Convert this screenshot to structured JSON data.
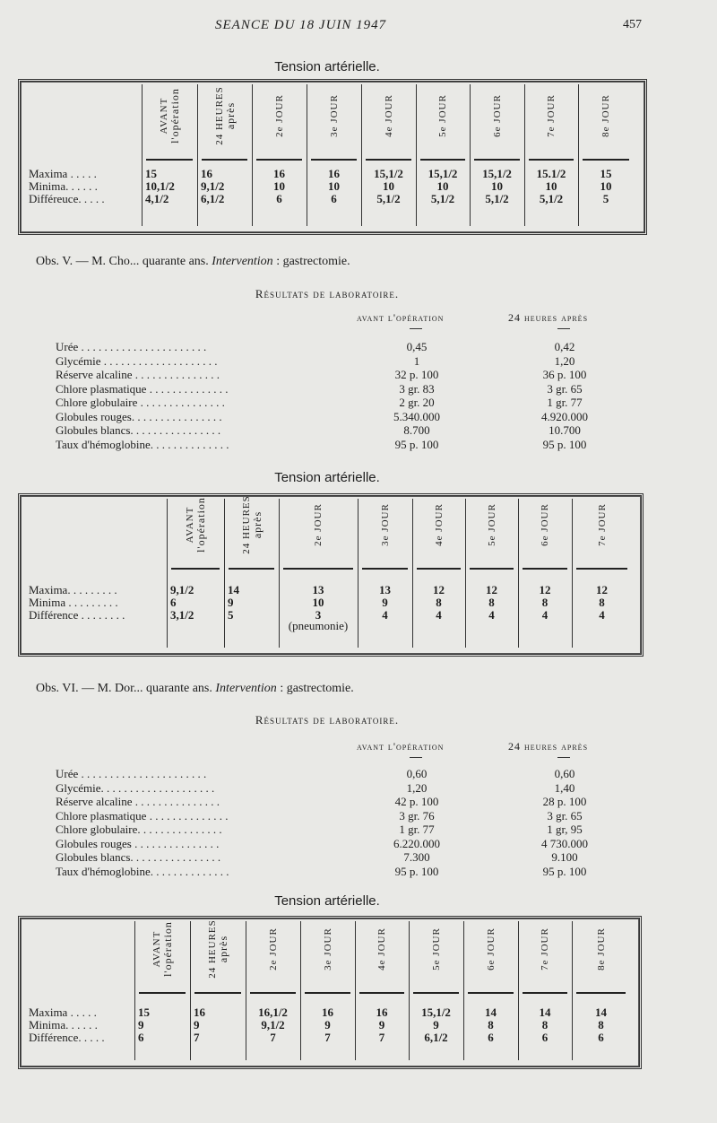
{
  "header": {
    "running_title": "SEANCE DU 18 JUIN 1947",
    "page_number": "457"
  },
  "tables": [
    {
      "title": "Tension artérielle.",
      "columns": [
        [
          "AVANT",
          "l'opération"
        ],
        [
          "24 HEURES",
          "après"
        ],
        [
          "2e JOUR"
        ],
        [
          "3e JOUR"
        ],
        [
          "4e JOUR"
        ],
        [
          "5e JOUR"
        ],
        [
          "6e JOUR"
        ],
        [
          "7e JOUR"
        ],
        [
          "8e JOUR"
        ]
      ],
      "rows": [
        {
          "label": "Maxima . . . . .",
          "values": [
            "15",
            "16",
            "16",
            "16",
            "15,1/2",
            "15,1/2",
            "15,1/2",
            "15.1/2",
            "15"
          ]
        },
        {
          "label": "Minima. . . . . .",
          "values": [
            "10,1/2",
            "9,1/2",
            "10",
            "10",
            "10",
            "10",
            "10",
            "10",
            "10"
          ]
        },
        {
          "label": "Différeuce. . . . .",
          "values": [
            "4,1/2",
            "6,1/2",
            "6",
            "6",
            "5,1/2",
            "5,1/2",
            "5,1/2",
            "5,1/2",
            "5"
          ]
        }
      ]
    },
    {
      "title": "Tension artérielle.",
      "columns": [
        [
          "AVANT",
          "l'opération"
        ],
        [
          "24 HEURES",
          "après"
        ],
        [
          "2e JOUR"
        ],
        [
          "3e JOUR"
        ],
        [
          "4e JOUR"
        ],
        [
          "5e JOUR"
        ],
        [
          "6e JOUR"
        ],
        [
          "7e JOUR"
        ]
      ],
      "rows": [
        {
          "label": "Maxima. . . . . . . . .",
          "values": [
            "9,1/2",
            "14",
            "13",
            "13",
            "12",
            "12",
            "12",
            "12"
          ]
        },
        {
          "label": "Minima . . . . . . . . .",
          "values": [
            "6",
            "9",
            "10",
            "9",
            "8",
            "8",
            "8",
            "8"
          ]
        },
        {
          "label": "Différence . . . . . . . .",
          "values": [
            "3,1/2",
            "5",
            "3",
            "4",
            "4",
            "4",
            "4",
            "4"
          ]
        }
      ],
      "note": "(pneumonie)"
    },
    {
      "title": "Tension artérielle.",
      "columns": [
        [
          "AVANT",
          "l'opération"
        ],
        [
          "24 HEURES",
          "après"
        ],
        [
          "2e JOUR"
        ],
        [
          "3e JOUR"
        ],
        [
          "4e JOUR"
        ],
        [
          "5e JOUR"
        ],
        [
          "6e JOUR"
        ],
        [
          "7e JOUR"
        ],
        [
          "8e JOUR"
        ]
      ],
      "rows": [
        {
          "label": "Maxima . . . . .",
          "values": [
            "15",
            "16",
            "16,1/2",
            "16",
            "16",
            "15,1/2",
            "14",
            "14",
            "14"
          ]
        },
        {
          "label": "Minima. . . . . .",
          "values": [
            "9",
            "9",
            "9,1/2",
            "9",
            "9",
            "9",
            "8",
            "8",
            "8"
          ]
        },
        {
          "label": "Différence. . . . .",
          "values": [
            "6",
            "7",
            "7",
            "7",
            "7",
            "6,1/2",
            "6",
            "6",
            "6"
          ]
        }
      ]
    }
  ],
  "observations": [
    {
      "prefix": "Obs. V. — M. Cho... quarante ans.",
      "emph": "Intervention",
      "suffix": ": gastrectomie."
    },
    {
      "prefix": "Obs. VI. — M. Dor... quarante ans.",
      "emph": "Intervention",
      "suffix": ": gastrectomie."
    }
  ],
  "labs": [
    {
      "title": "Résultats de laboratoire.",
      "col_before": "avant l'opération",
      "col_after": "24 heures après",
      "rows": [
        {
          "label": "Urée . . . . . . . . . . . . . . . . . . . . . .",
          "before": "0,45",
          "after": "0,42"
        },
        {
          "label": "Glycémie . . . . . . . . . . . . . . . . . . . .",
          "before": "1",
          "after": "1,20"
        },
        {
          "label": "Réserve alcaline . . . . . . . . . . . . . . .",
          "before": "32 p. 100",
          "after": "36 p. 100"
        },
        {
          "label": "Chlore plasmatique . . . . . . . . . . . . . .",
          "before": "3 gr. 83",
          "after": "3 gr. 65"
        },
        {
          "label": "Chlore globulaire . . . . . . . . . . . . . . .",
          "before": "2 gr. 20",
          "after": "1 gr. 77"
        },
        {
          "label": "Globules rouges. . . . . . . . . . . . . . . .",
          "before": "5.340.000",
          "after": "4.920.000"
        },
        {
          "label": "Globules blancs. . . . . . . . . . . . . . . .",
          "before": "8.700",
          "after": "10.700"
        },
        {
          "label": "Taux d'hémoglobine. . . . . . . . . . . . . .",
          "before": "95 p. 100",
          "after": "95 p. 100"
        }
      ]
    },
    {
      "title": "Résultats de laboratoire.",
      "col_before": "avant l'opération",
      "col_after": "24 heures après",
      "rows": [
        {
          "label": "Urée . . . . . . . . . . . . . . . . . . . . . .",
          "before": "0,60",
          "after": "0,60"
        },
        {
          "label": "Glycémie. . . . . . . . . . . . . . . . . . . .",
          "before": "1,20",
          "after": "1,40"
        },
        {
          "label": "Réserve alcaline . . . . . . . . . . . . . . .",
          "before": "42 p. 100",
          "after": "28 p. 100"
        },
        {
          "label": "Chlore plasmatique . . . . . . . . . . . . . .",
          "before": "3 gr. 76",
          "after": "3 gr. 65"
        },
        {
          "label": "Chlore globulaire. . . . . . . . . . . . . . .",
          "before": "1 gr. 77",
          "after": "1 gr, 95"
        },
        {
          "label": "Globules rouges . . . . . . . . . . . . . . .",
          "before": "6.220.000",
          "after": "4 730.000"
        },
        {
          "label": "Globules blancs. . . . . . . . . . . . . . . .",
          "before": "7.300",
          "after": "9.100"
        },
        {
          "label": "Taux d'hémoglobine. . . . . . . . . . . . . .",
          "before": "95 p. 100",
          "after": "95 p. 100"
        }
      ]
    }
  ]
}
